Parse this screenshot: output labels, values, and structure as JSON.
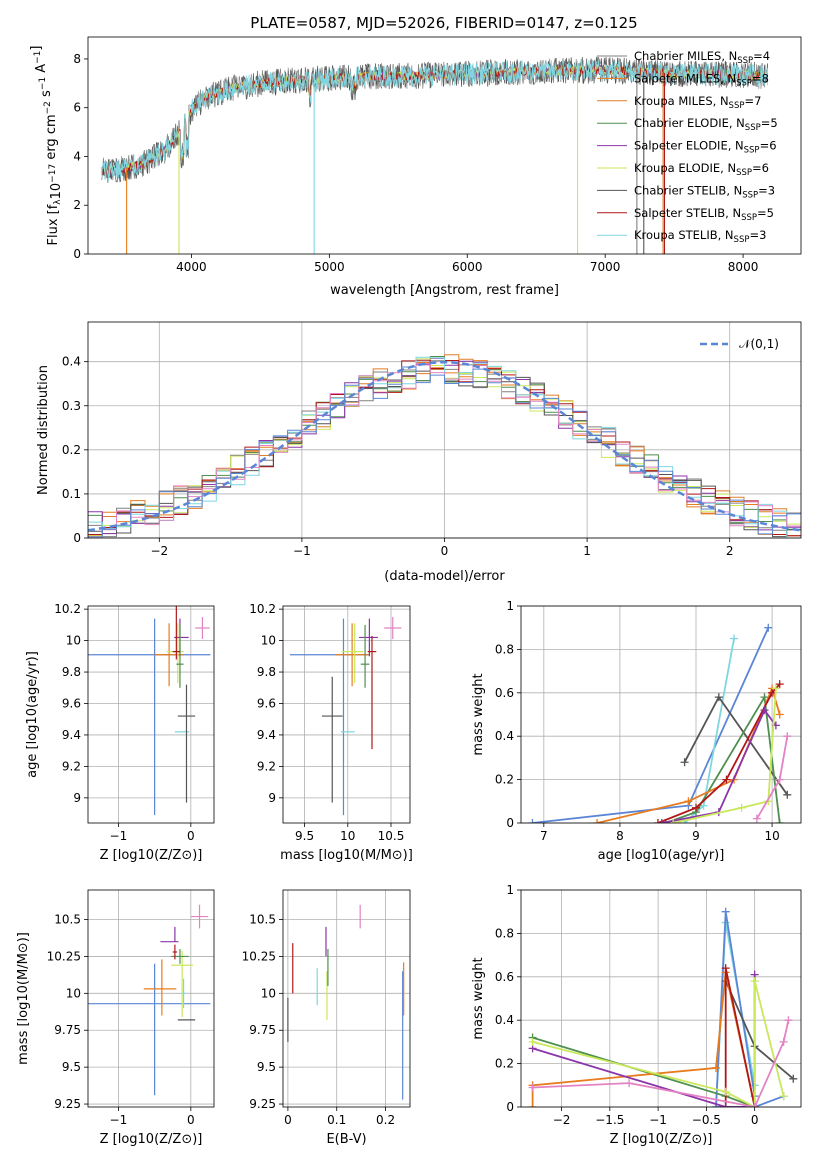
{
  "figure": {
    "title": "PLATE=0587, MJD=52026, FIBERID=0147, z=0.125"
  },
  "colors": {
    "c_miles": "#808080",
    "s_miles": "#e87b1e",
    "k_miles": "#e07f2a",
    "c_elodie": "#4f8f4f",
    "s_elodie": "#8b35a8",
    "k_elodie": "#c9e85a",
    "c_stelib": "#555555",
    "s_stelib": "#b01818",
    "k_stelib": "#7fd6e0",
    "blue": "#5b86d6",
    "pink": "#e383c4",
    "dashed": "#5b86d6"
  },
  "chart_data": [
    {
      "id": "spectrum",
      "type": "line",
      "xlabel": "wavelength [Angstrom, rest frame]",
      "ylabel": "Flux [f_λ10^-17 erg cm^-2 s^-1 A^-1]",
      "xlim": [
        3250,
        8420
      ],
      "ylim": [
        0,
        8.9
      ],
      "xticks": [
        4000,
        5000,
        6000,
        7000,
        8000
      ],
      "yticks": [
        0,
        2,
        4,
        6,
        8
      ],
      "grid": false,
      "legend_position": "top-right",
      "legend": [
        {
          "label": "Chabrier MILES, N_SSP=4",
          "color": "#808080"
        },
        {
          "label": "Salpeter MILES, N_SSP=8",
          "color": "#e87b1e"
        },
        {
          "label": "Kroupa MILES, N_SSP=7",
          "color": "#e07f2a"
        },
        {
          "label": "Chabrier ELODIE, N_SSP=5",
          "color": "#4f8f4f"
        },
        {
          "label": "Salpeter ELODIE, N_SSP=6",
          "color": "#8b35a8"
        },
        {
          "label": "Kroupa ELODIE, N_SSP=6",
          "color": "#c9e85a"
        },
        {
          "label": "Chabrier STELIB, N_SSP=3",
          "color": "#555555"
        },
        {
          "label": "Salpeter STELIB, N_SSP=5",
          "color": "#b01818"
        },
        {
          "label": "Kroupa STELIB, N_SSP=3",
          "color": "#7fd6e0"
        }
      ],
      "continuum": {
        "x": [
          3350,
          3500,
          3650,
          3800,
          3900,
          4000,
          4100,
          4300,
          4500,
          4700,
          5000,
          5300,
          5600,
          6000,
          6500,
          7000,
          7500,
          8000,
          8180
        ],
        "y": [
          3.4,
          3.5,
          3.7,
          4.2,
          4.9,
          5.9,
          6.4,
          6.8,
          7.0,
          7.1,
          7.2,
          7.3,
          7.3,
          7.4,
          7.5,
          7.55,
          7.4,
          7.35,
          7.3
        ]
      },
      "drop_lines": [
        {
          "x": 3530,
          "color": "#e87b1e"
        },
        {
          "x": 3910,
          "color": "#c9e85a"
        },
        {
          "x": 4890,
          "color": "#7fd6e0"
        },
        {
          "x": 6800,
          "color": "#c9e85a"
        },
        {
          "x": 7230,
          "color": "#808080"
        },
        {
          "x": 7280,
          "color": "#555555"
        },
        {
          "x": 7420,
          "color": "#e07f2a"
        },
        {
          "x": 7430,
          "color": "#b01818"
        }
      ]
    },
    {
      "id": "residuals",
      "type": "histogram",
      "xlabel": "(data-model)/error",
      "ylabel": "Normed distribution",
      "xlim": [
        -2.5,
        2.5
      ],
      "ylim": [
        0,
        0.49
      ],
      "xticks": [
        -2,
        -1,
        0,
        1,
        2
      ],
      "yticks": [
        0.0,
        0.1,
        0.2,
        0.3,
        0.4
      ],
      "grid": true,
      "legend_position": "top-right",
      "legend_label": "N(0,1)",
      "bin_width": 0.1
    },
    {
      "id": "age_vs_Z",
      "type": "errorbar",
      "xlabel": "Z [log10(Z/Z⊙)]",
      "ylabel": "age  [log10(age/yr)]",
      "xlim": [
        -1.42,
        0.32
      ],
      "ylim": [
        8.84,
        10.22
      ],
      "xticks": [
        -1,
        0
      ],
      "yticks": [
        9.0,
        9.2,
        9.4,
        9.6,
        9.8,
        10.0,
        10.2
      ],
      "grid": true,
      "points": [
        {
          "x": -0.5,
          "y": 9.91,
          "xerr": [
            0.9,
            0.25
          ],
          "yerr": [
            0.0,
            0.0
          ],
          "color": "#5b86d6",
          "xfull": [
            -1.42,
            0.27
          ],
          "yfull": [
            8.89,
            10.14
          ]
        },
        {
          "x": -0.3,
          "y": 9.91,
          "xerr": [
            0.2,
            0.2
          ],
          "yerr": [
            0.2,
            0.2
          ],
          "color": "#e87b1e"
        },
        {
          "x": -0.18,
          "y": 9.93,
          "xerr": [
            0.15,
            0.08
          ],
          "yerr": [
            0.2,
            0.18
          ],
          "color": "#c9e85a"
        },
        {
          "x": -0.15,
          "y": 10.02,
          "xerr": [
            0.08,
            0.12
          ],
          "yerr": [
            0.12,
            0.12
          ],
          "color": "#8b35a8"
        },
        {
          "x": -0.15,
          "y": 9.85,
          "xerr": [
            0.05,
            0.05
          ],
          "yerr": [
            0.15,
            0.25
          ],
          "color": "#4f8f4f"
        },
        {
          "x": -0.2,
          "y": 9.93,
          "xerr": [
            0.05,
            0.05
          ],
          "yerr": [
            0.05,
            0.62
          ],
          "color": "#b01818"
        },
        {
          "x": -0.12,
          "y": 9.42,
          "xerr": [
            0.1,
            0.1
          ],
          "yerr": [
            0.0,
            0.0
          ],
          "color": "#7fd6e0"
        },
        {
          "x": -0.06,
          "y": 9.52,
          "xerr": [
            0.12,
            0.12
          ],
          "yerr": [
            0.55,
            0.2
          ],
          "color": "#555555"
        },
        {
          "x": 0.16,
          "y": 10.08,
          "xerr": [
            0.1,
            0.1
          ],
          "yerr": [
            0.07,
            0.07
          ],
          "color": "#e383c4"
        }
      ]
    },
    {
      "id": "age_vs_mass",
      "type": "errorbar",
      "xlabel": "mass [log10(M/M⊙)]",
      "ylabel": "",
      "xlim": [
        9.25,
        10.72
      ],
      "ylim": [
        8.84,
        10.22
      ],
      "xticks": [
        9.5,
        10.0,
        10.5
      ],
      "yticks": [
        9.0,
        9.2,
        9.4,
        9.6,
        9.8,
        10.0,
        10.2
      ],
      "grid": true,
      "points": [
        {
          "x": 9.95,
          "y": 9.91,
          "xerr": [
            0.62,
            0.3
          ],
          "yerr": [
            1.02,
            0.23
          ],
          "color": "#5b86d6"
        },
        {
          "x": 10.05,
          "y": 9.91,
          "xerr": [
            0.2,
            0.2
          ],
          "yerr": [
            0.2,
            0.2
          ],
          "color": "#e87b1e"
        },
        {
          "x": 10.08,
          "y": 9.93,
          "xerr": [
            0.15,
            0.1
          ],
          "yerr": [
            0.2,
            0.18
          ],
          "color": "#c9e85a"
        },
        {
          "x": 10.25,
          "y": 10.02,
          "xerr": [
            0.12,
            0.1
          ],
          "yerr": [
            0.12,
            0.12
          ],
          "color": "#8b35a8"
        },
        {
          "x": 10.2,
          "y": 9.85,
          "xerr": [
            0.05,
            0.05
          ],
          "yerr": [
            0.15,
            0.25
          ],
          "color": "#4f8f4f"
        },
        {
          "x": 10.28,
          "y": 9.93,
          "xerr": [
            0.05,
            0.05
          ],
          "yerr": [
            0.62,
            0.1
          ],
          "color": "#b01818"
        },
        {
          "x": 10.0,
          "y": 9.42,
          "xerr": [
            0.08,
            0.08
          ],
          "yerr": [
            0.0,
            0.0
          ],
          "color": "#7fd6e0"
        },
        {
          "x": 9.82,
          "y": 9.52,
          "xerr": [
            0.12,
            0.12
          ],
          "yerr": [
            0.55,
            0.25
          ],
          "color": "#555555"
        },
        {
          "x": 10.52,
          "y": 10.08,
          "xerr": [
            0.1,
            0.1
          ],
          "yerr": [
            0.07,
            0.07
          ],
          "color": "#e383c4"
        }
      ]
    },
    {
      "id": "weight_vs_age",
      "type": "line",
      "xlabel": "age  [log10(age/yr)]",
      "ylabel": "mass weight",
      "xlim": [
        6.7,
        10.38
      ],
      "ylim": [
        0,
        1.0
      ],
      "xticks": [
        7,
        8,
        9,
        10
      ],
      "yticks": [
        0.0,
        0.2,
        0.4,
        0.6,
        0.8,
        1.0
      ],
      "grid": true,
      "series": [
        {
          "color": "#5b86d6",
          "x": [
            6.85,
            8.9,
            9.95
          ],
          "y": [
            0.0,
            0.08,
            0.9
          ]
        },
        {
          "color": "#7fd6e0",
          "x": [
            8.85,
            9.1,
            9.5
          ],
          "y": [
            0.0,
            0.08,
            0.85
          ]
        },
        {
          "color": "#555555",
          "x": [
            8.85,
            9.3,
            10.2
          ],
          "y": [
            0.28,
            0.58,
            0.13
          ]
        },
        {
          "color": "#4f8f4f",
          "x": [
            8.6,
            9.0,
            9.9,
            10.1
          ],
          "y": [
            0.0,
            0.05,
            0.58,
            0.0
          ]
        },
        {
          "color": "#e87b1e",
          "x": [
            7.7,
            8.9,
            9.5,
            10.0,
            10.1
          ],
          "y": [
            0.0,
            0.1,
            0.2,
            0.62,
            0.5
          ]
        },
        {
          "color": "#b01818",
          "x": [
            8.5,
            9.0,
            9.4,
            10.0,
            10.1
          ],
          "y": [
            0.0,
            0.07,
            0.2,
            0.6,
            0.64
          ]
        },
        {
          "color": "#8b35a8",
          "x": [
            8.55,
            9.3,
            9.9,
            10.05
          ],
          "y": [
            0.0,
            0.05,
            0.52,
            0.45
          ]
        },
        {
          "color": "#c9e85a",
          "x": [
            8.7,
            9.6,
            9.95,
            10.05
          ],
          "y": [
            0.0,
            0.07,
            0.1,
            0.62
          ]
        },
        {
          "color": "#e383c4",
          "x": [
            9.8,
            10.1,
            10.2
          ],
          "y": [
            0.02,
            0.2,
            0.4
          ]
        }
      ]
    },
    {
      "id": "mass_vs_Z",
      "type": "errorbar",
      "xlabel": "Z [log10(Z/Z⊙)]",
      "ylabel": "mass [log10(M/M⊙)]",
      "xlim": [
        -1.42,
        0.32
      ],
      "ylim": [
        9.23,
        10.7
      ],
      "xticks": [
        -1,
        0
      ],
      "yticks": [
        9.25,
        9.5,
        9.75,
        10.0,
        10.25,
        10.5
      ],
      "grid": true,
      "points": [
        {
          "x": -0.5,
          "y": 9.93,
          "xerr": [
            0.92,
            0.77
          ],
          "yerr": [
            0.62,
            0.27
          ],
          "color": "#5b86d6"
        },
        {
          "x": -0.4,
          "y": 10.03,
          "xerr": [
            0.25,
            0.2
          ],
          "yerr": [
            0.18,
            0.2
          ],
          "color": "#e87b1e"
        },
        {
          "x": -0.12,
          "y": 10.19,
          "xerr": [
            0.15,
            0.15
          ],
          "yerr": [
            0.35,
            0.1
          ],
          "color": "#c9e85a"
        },
        {
          "x": -0.22,
          "y": 10.35,
          "xerr": [
            0.2,
            0.05
          ],
          "yerr": [
            0.0,
            0.1
          ],
          "color": "#8b35a8"
        },
        {
          "x": -0.15,
          "y": 10.25,
          "xerr": [
            0.12,
            0.12
          ],
          "yerr": [
            0.05,
            0.05
          ],
          "color": "#4f8f4f"
        },
        {
          "x": -0.22,
          "y": 10.28,
          "xerr": [
            0.03,
            0.03
          ],
          "yerr": [
            0.05,
            0.05
          ],
          "color": "#b01818"
        },
        {
          "x": -0.1,
          "y": 10.0,
          "xerr": [
            0.02,
            0.02
          ],
          "yerr": [
            0.1,
            0.1
          ],
          "color": "#7fd6e0"
        },
        {
          "x": -0.06,
          "y": 9.82,
          "xerr": [
            0.12,
            0.12
          ],
          "yerr": [
            0.0,
            0.0
          ],
          "color": "#555555"
        },
        {
          "x": 0.12,
          "y": 10.52,
          "xerr": [
            0.12,
            0.12
          ],
          "yerr": [
            0.08,
            0.08
          ],
          "color": "#e383c4"
        }
      ]
    },
    {
      "id": "mass_vs_EBV",
      "type": "errorbar",
      "xlabel": "E(B-V)",
      "ylabel": "",
      "xlim": [
        -0.01,
        0.25
      ],
      "ylim": [
        9.23,
        10.7
      ],
      "xticks": [
        0.0,
        0.1,
        0.2
      ],
      "yticks": [
        9.25,
        9.5,
        9.75,
        10.0,
        10.25,
        10.5
      ],
      "grid": true,
      "points": [
        {
          "x": 0.235,
          "y": 9.93,
          "xerr": [
            0,
            0
          ],
          "yerr": [
            0.65,
            0.22
          ],
          "color": "#5b86d6"
        },
        {
          "x": 0.237,
          "y": 10.03,
          "xerr": [
            0,
            0
          ],
          "yerr": [
            0.18,
            0.18
          ],
          "color": "#e87b1e"
        },
        {
          "x": 0.08,
          "y": 10.0,
          "xerr": [
            0,
            0
          ],
          "yerr": [
            0.18,
            0.15
          ],
          "color": "#c9e85a"
        },
        {
          "x": 0.078,
          "y": 10.35,
          "xerr": [
            0,
            0
          ],
          "yerr": [
            0.1,
            0.1
          ],
          "color": "#8b35a8"
        },
        {
          "x": 0.082,
          "y": 10.15,
          "xerr": [
            0,
            0
          ],
          "yerr": [
            0.1,
            0.15
          ],
          "color": "#4f8f4f"
        },
        {
          "x": 0.01,
          "y": 10.17,
          "xerr": [
            0,
            0
          ],
          "yerr": [
            0.17,
            0.17
          ],
          "color": "#b01818"
        },
        {
          "x": 0.06,
          "y": 10.05,
          "xerr": [
            0,
            0
          ],
          "yerr": [
            0.13,
            0.12
          ],
          "color": "#7fd6e0"
        },
        {
          "x": 0.0,
          "y": 9.82,
          "xerr": [
            0,
            0
          ],
          "yerr": [
            0.15,
            0.15
          ],
          "color": "#555555"
        },
        {
          "x": 0.148,
          "y": 10.52,
          "xerr": [
            0,
            0
          ],
          "yerr": [
            0.08,
            0.08
          ],
          "color": "#e383c4"
        }
      ]
    },
    {
      "id": "weight_vs_Z",
      "type": "line",
      "xlabel": "Z [log10(Z/Z⊙)]",
      "ylabel": "mass weight",
      "xlim": [
        -2.42,
        0.48
      ],
      "ylim": [
        0,
        1.0
      ],
      "xticks": [
        -2.0,
        -1.5,
        -1.0,
        -0.5,
        0.0
      ],
      "yticks": [
        0.0,
        0.2,
        0.4,
        0.6,
        0.8,
        1.0
      ],
      "grid": true,
      "series": [
        {
          "color": "#5b86d6",
          "x": [
            -0.4,
            0.0,
            0.3
          ],
          "y": [
            0.0,
            0.0,
            0.05
          ]
        },
        {
          "color": "#7fd6e0",
          "x": [
            -0.4,
            -0.3,
            0.0
          ],
          "y": [
            0.0,
            0.85,
            0.1
          ]
        },
        {
          "color": "#5b86d6",
          "x": [
            -0.4,
            -0.3,
            0.0
          ],
          "y": [
            0.0,
            0.9,
            0.05
          ]
        },
        {
          "color": "#555555",
          "x": [
            -0.3,
            0.0,
            0.4
          ],
          "y": [
            0.58,
            0.28,
            0.13
          ]
        },
        {
          "color": "#4f8f4f",
          "x": [
            -2.3,
            -0.3,
            0.0
          ],
          "y": [
            0.32,
            0.05,
            0.0
          ]
        },
        {
          "color": "#e87b1e",
          "x": [
            -2.3,
            -2.3,
            -0.4,
            -0.3,
            0.0
          ],
          "y": [
            0.0,
            0.1,
            0.18,
            0.62,
            0.0
          ]
        },
        {
          "color": "#b01818",
          "x": [
            -0.3,
            -0.3,
            0.0
          ],
          "y": [
            0.0,
            0.64,
            0.0
          ]
        },
        {
          "color": "#8b35a8",
          "x": [
            -2.3,
            -0.3,
            0.0,
            0.0
          ],
          "y": [
            0.27,
            0.0,
            0.0,
            0.61
          ]
        },
        {
          "color": "#c9e85a",
          "x": [
            -2.3,
            -0.3,
            0.0,
            0.0,
            0.3
          ],
          "y": [
            0.3,
            0.07,
            0.0,
            0.58,
            0.05
          ]
        },
        {
          "color": "#e383c4",
          "x": [
            -2.3,
            -1.3,
            0.0,
            0.3,
            0.35
          ],
          "y": [
            0.09,
            0.11,
            0.0,
            0.3,
            0.4
          ]
        }
      ]
    }
  ]
}
